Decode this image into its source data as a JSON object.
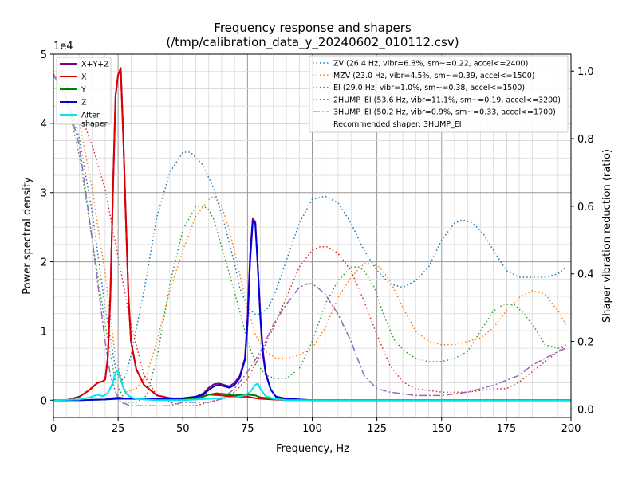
{
  "chart_data": {
    "type": "line",
    "title_line1": "Frequency response and shapers",
    "title_line2": "(/tmp/calibration_data_y_20240602_010112.csv)",
    "xlabel": "Frequency, Hz",
    "ylabel": "Power spectral density",
    "y2label": "Shaper vibration reduction (ratio)",
    "y_scale_label": "1e4",
    "xlim": [
      0,
      200
    ],
    "ylim": [
      -0.25,
      5.0
    ],
    "y2lim": [
      -0.025,
      1.05
    ],
    "x_ticks": [
      0,
      25,
      50,
      75,
      100,
      125,
      150,
      175,
      200
    ],
    "x_tick_labels": [
      "0",
      "25",
      "50",
      "75",
      "100",
      "125",
      "150",
      "175",
      "200"
    ],
    "y_ticks": [
      0,
      1,
      2,
      3,
      4,
      5
    ],
    "y_tick_labels": [
      "0",
      "1",
      "2",
      "3",
      "4",
      "5"
    ],
    "y2_ticks": [
      0.0,
      0.2,
      0.4,
      0.6,
      0.8,
      1.0
    ],
    "y2_tick_labels": [
      "0.0",
      "0.2",
      "0.4",
      "0.6",
      "0.8",
      "1.0"
    ],
    "grid": true,
    "psd_legend_placement": "upper-left",
    "shaper_legend_placement": "upper-right",
    "recommended_text": "Recommended shaper: 3HUMP_EI",
    "psd_series": [
      {
        "name": "X+Y+Z",
        "color": "#800080",
        "style": "solid",
        "x": [
          0,
          5,
          10,
          14,
          17,
          19,
          20,
          21,
          22,
          23,
          24,
          25,
          26,
          27,
          28,
          29,
          30,
          32,
          35,
          40,
          45,
          50,
          55,
          58,
          60,
          62,
          64,
          66,
          68,
          70,
          72,
          74,
          75,
          76,
          77,
          78,
          79,
          80,
          81,
          82,
          84,
          86,
          90,
          95,
          100,
          105,
          110,
          130,
          150,
          175,
          200
        ],
        "y": [
          0,
          0,
          0.05,
          0.15,
          0.25,
          0.27,
          0.3,
          0.6,
          1.5,
          3.0,
          4.4,
          4.7,
          4.8,
          3.8,
          2.6,
          1.5,
          0.85,
          0.45,
          0.22,
          0.07,
          0.03,
          0.02,
          0.05,
          0.1,
          0.18,
          0.23,
          0.24,
          0.22,
          0.2,
          0.25,
          0.35,
          0.6,
          1.2,
          2.1,
          2.62,
          2.58,
          1.9,
          1.2,
          0.7,
          0.4,
          0.15,
          0.05,
          0.02,
          0.01,
          0,
          0,
          0,
          0,
          0,
          0,
          0
        ]
      },
      {
        "name": "X",
        "color": "#dd0000",
        "style": "solid",
        "x": [
          0,
          5,
          10,
          14,
          17,
          19,
          20,
          21,
          22,
          23,
          24,
          25,
          26,
          27,
          28,
          29,
          30,
          32,
          35,
          40,
          45,
          50,
          55,
          60,
          65,
          70,
          75,
          78,
          80,
          85,
          90,
          100,
          200
        ],
        "y": [
          0,
          0,
          0.05,
          0.15,
          0.25,
          0.27,
          0.3,
          0.6,
          1.5,
          3.0,
          4.4,
          4.7,
          4.8,
          3.8,
          2.6,
          1.5,
          0.85,
          0.45,
          0.22,
          0.07,
          0.03,
          0.02,
          0.01,
          0.08,
          0.07,
          0.05,
          0.05,
          0.03,
          0.02,
          0.01,
          0,
          0,
          0
        ]
      },
      {
        "name": "Y",
        "color": "#008000",
        "style": "solid",
        "x": [
          0,
          10,
          20,
          23,
          25,
          27,
          30,
          40,
          55,
          60,
          63,
          66,
          70,
          75,
          78,
          80,
          85,
          90,
          100,
          200
        ],
        "y": [
          0,
          0,
          0.01,
          0.03,
          0.04,
          0.03,
          0.02,
          0.01,
          0.03,
          0.08,
          0.1,
          0.09,
          0.07,
          0.08,
          0.07,
          0.04,
          0.02,
          0.01,
          0,
          0
        ]
      },
      {
        "name": "Z",
        "color": "#0000dd",
        "style": "solid",
        "x": [
          0,
          10,
          20,
          25,
          30,
          40,
          50,
          55,
          58,
          60,
          62,
          64,
          66,
          68,
          70,
          72,
          74,
          75,
          76,
          77,
          78,
          79,
          80,
          81,
          82,
          84,
          86,
          90,
          95,
          100,
          105,
          200
        ],
        "y": [
          0,
          0,
          0.01,
          0.02,
          0.02,
          0.02,
          0.03,
          0.05,
          0.08,
          0.15,
          0.2,
          0.22,
          0.2,
          0.18,
          0.22,
          0.32,
          0.58,
          1.1,
          2.0,
          2.58,
          2.55,
          1.9,
          1.15,
          0.65,
          0.38,
          0.15,
          0.05,
          0.02,
          0.01,
          0,
          0,
          0
        ]
      },
      {
        "name": "After\nshaper",
        "color": "#00e5ee",
        "style": "solid",
        "x": [
          0,
          10,
          14,
          17,
          19,
          21,
          23,
          24,
          25,
          26,
          27,
          28,
          30,
          32,
          35,
          40,
          50,
          60,
          70,
          74,
          76,
          78,
          79,
          80,
          82,
          85,
          90,
          100,
          200
        ],
        "y": [
          0,
          0.01,
          0.04,
          0.08,
          0.06,
          0.1,
          0.25,
          0.4,
          0.42,
          0.3,
          0.18,
          0.1,
          0.04,
          0.02,
          0.01,
          0,
          0,
          0.02,
          0.04,
          0.07,
          0.12,
          0.22,
          0.24,
          0.16,
          0.06,
          0.02,
          0,
          0,
          0
        ]
      }
    ],
    "shaper_series": [
      {
        "name": "ZV (26.4 Hz, vibr=6.8%, sm~=0.22, accel<=2400)",
        "color": "#1f77b4",
        "style": "dotted",
        "x": [
          0,
          5,
          10,
          15,
          20,
          24,
          26,
          28,
          30,
          35,
          40,
          45,
          50,
          53,
          58,
          62,
          66,
          70,
          72,
          75,
          78,
          80,
          83,
          86,
          90,
          95,
          100,
          105,
          110,
          115,
          120,
          125,
          130,
          135,
          140,
          145,
          150,
          155,
          158,
          162,
          166,
          170,
          175,
          180,
          185,
          190,
          195,
          198
        ],
        "y": [
          0.99,
          0.93,
          0.8,
          0.58,
          0.3,
          0.12,
          0.08,
          0.1,
          0.16,
          0.35,
          0.57,
          0.7,
          0.76,
          0.76,
          0.72,
          0.65,
          0.55,
          0.43,
          0.36,
          0.3,
          0.28,
          0.28,
          0.3,
          0.35,
          0.44,
          0.55,
          0.62,
          0.63,
          0.61,
          0.55,
          0.47,
          0.41,
          0.37,
          0.36,
          0.38,
          0.42,
          0.5,
          0.55,
          0.56,
          0.55,
          0.52,
          0.47,
          0.41,
          0.39,
          0.39,
          0.39,
          0.4,
          0.42
        ]
      },
      {
        "name": "MZV (23.0 Hz, vibr=4.5%, sm~=0.39, accel<=1500)",
        "color": "#ff7f0e",
        "style": "dotted",
        "x": [
          0,
          5,
          10,
          15,
          20,
          24,
          28,
          32,
          36,
          40,
          45,
          50,
          55,
          60,
          62,
          65,
          68,
          72,
          75,
          78,
          82,
          86,
          90,
          95,
          100,
          105,
          110,
          115,
          120,
          123,
          126,
          130,
          135,
          140,
          145,
          150,
          155,
          160,
          165,
          170,
          175,
          180,
          185,
          190,
          195,
          198
        ],
        "y": [
          0.99,
          0.95,
          0.85,
          0.65,
          0.4,
          0.15,
          0.05,
          0.06,
          0.1,
          0.2,
          0.35,
          0.47,
          0.57,
          0.62,
          0.63,
          0.6,
          0.53,
          0.4,
          0.3,
          0.22,
          0.17,
          0.15,
          0.15,
          0.16,
          0.18,
          0.24,
          0.33,
          0.39,
          0.43,
          0.43,
          0.42,
          0.38,
          0.3,
          0.23,
          0.2,
          0.19,
          0.19,
          0.2,
          0.21,
          0.24,
          0.29,
          0.33,
          0.35,
          0.34,
          0.29,
          0.25
        ]
      },
      {
        "name": "EI (29.0 Hz, vibr=1.0%, sm~=0.38, accel<=1500)",
        "color": "#2ca02c",
        "style": "dotted",
        "x": [
          0,
          5,
          10,
          15,
          20,
          24,
          28,
          32,
          36,
          40,
          45,
          50,
          55,
          58,
          60,
          62,
          65,
          68,
          72,
          75,
          78,
          82,
          86,
          90,
          95,
          100,
          105,
          110,
          115,
          118,
          120,
          124,
          128,
          132,
          136,
          140,
          145,
          150,
          155,
          160,
          165,
          170,
          174,
          178,
          182,
          186,
          190,
          195,
          198
        ],
        "y": [
          0.99,
          0.92,
          0.75,
          0.5,
          0.25,
          0.08,
          0.02,
          0.02,
          0.04,
          0.15,
          0.37,
          0.53,
          0.6,
          0.6,
          0.59,
          0.56,
          0.48,
          0.4,
          0.29,
          0.2,
          0.14,
          0.1,
          0.09,
          0.09,
          0.12,
          0.2,
          0.31,
          0.38,
          0.42,
          0.42,
          0.41,
          0.36,
          0.27,
          0.2,
          0.17,
          0.15,
          0.14,
          0.14,
          0.15,
          0.17,
          0.23,
          0.29,
          0.31,
          0.31,
          0.28,
          0.24,
          0.19,
          0.18,
          0.19
        ]
      },
      {
        "name": "2HUMP_EI (53.6 Hz, vibr=11.1%, sm~=0.19, accel<=3200)",
        "color": "#d62728",
        "style": "dotted",
        "x": [
          0,
          5,
          10,
          15,
          20,
          25,
          30,
          35,
          40,
          45,
          50,
          55,
          60,
          65,
          70,
          75,
          80,
          85,
          90,
          95,
          100,
          103,
          106,
          110,
          115,
          120,
          125,
          130,
          135,
          140,
          150,
          160,
          170,
          175,
          180,
          185,
          190,
          195,
          198
        ],
        "y": [
          0.99,
          0.96,
          0.88,
          0.78,
          0.65,
          0.45,
          0.25,
          0.1,
          0.04,
          0.02,
          0.01,
          0.01,
          0.02,
          0.03,
          0.05,
          0.09,
          0.16,
          0.24,
          0.33,
          0.42,
          0.47,
          0.48,
          0.48,
          0.46,
          0.41,
          0.32,
          0.22,
          0.13,
          0.08,
          0.06,
          0.05,
          0.05,
          0.06,
          0.06,
          0.08,
          0.11,
          0.14,
          0.17,
          0.19
        ]
      },
      {
        "name": "3HUMP_EI (50.2 Hz, vibr=0.9%, sm~=0.33, accel<=1700)",
        "color": "#9467bd",
        "style": "dashdot",
        "x": [
          0,
          5,
          10,
          15,
          18,
          20,
          22,
          24,
          26,
          30,
          35,
          40,
          45,
          50,
          55,
          60,
          65,
          70,
          75,
          80,
          85,
          90,
          95,
          98,
          100,
          102,
          105,
          110,
          115,
          120,
          125,
          130,
          140,
          150,
          160,
          170,
          180,
          185,
          190,
          195,
          198
        ],
        "y": [
          0.99,
          0.92,
          0.78,
          0.5,
          0.32,
          0.2,
          0.1,
          0.05,
          0.02,
          0.01,
          0.01,
          0.01,
          0.01,
          0.02,
          0.02,
          0.02,
          0.03,
          0.06,
          0.11,
          0.17,
          0.25,
          0.31,
          0.36,
          0.37,
          0.37,
          0.36,
          0.34,
          0.28,
          0.2,
          0.1,
          0.06,
          0.05,
          0.04,
          0.04,
          0.05,
          0.07,
          0.1,
          0.13,
          0.15,
          0.17,
          0.18
        ]
      }
    ]
  }
}
